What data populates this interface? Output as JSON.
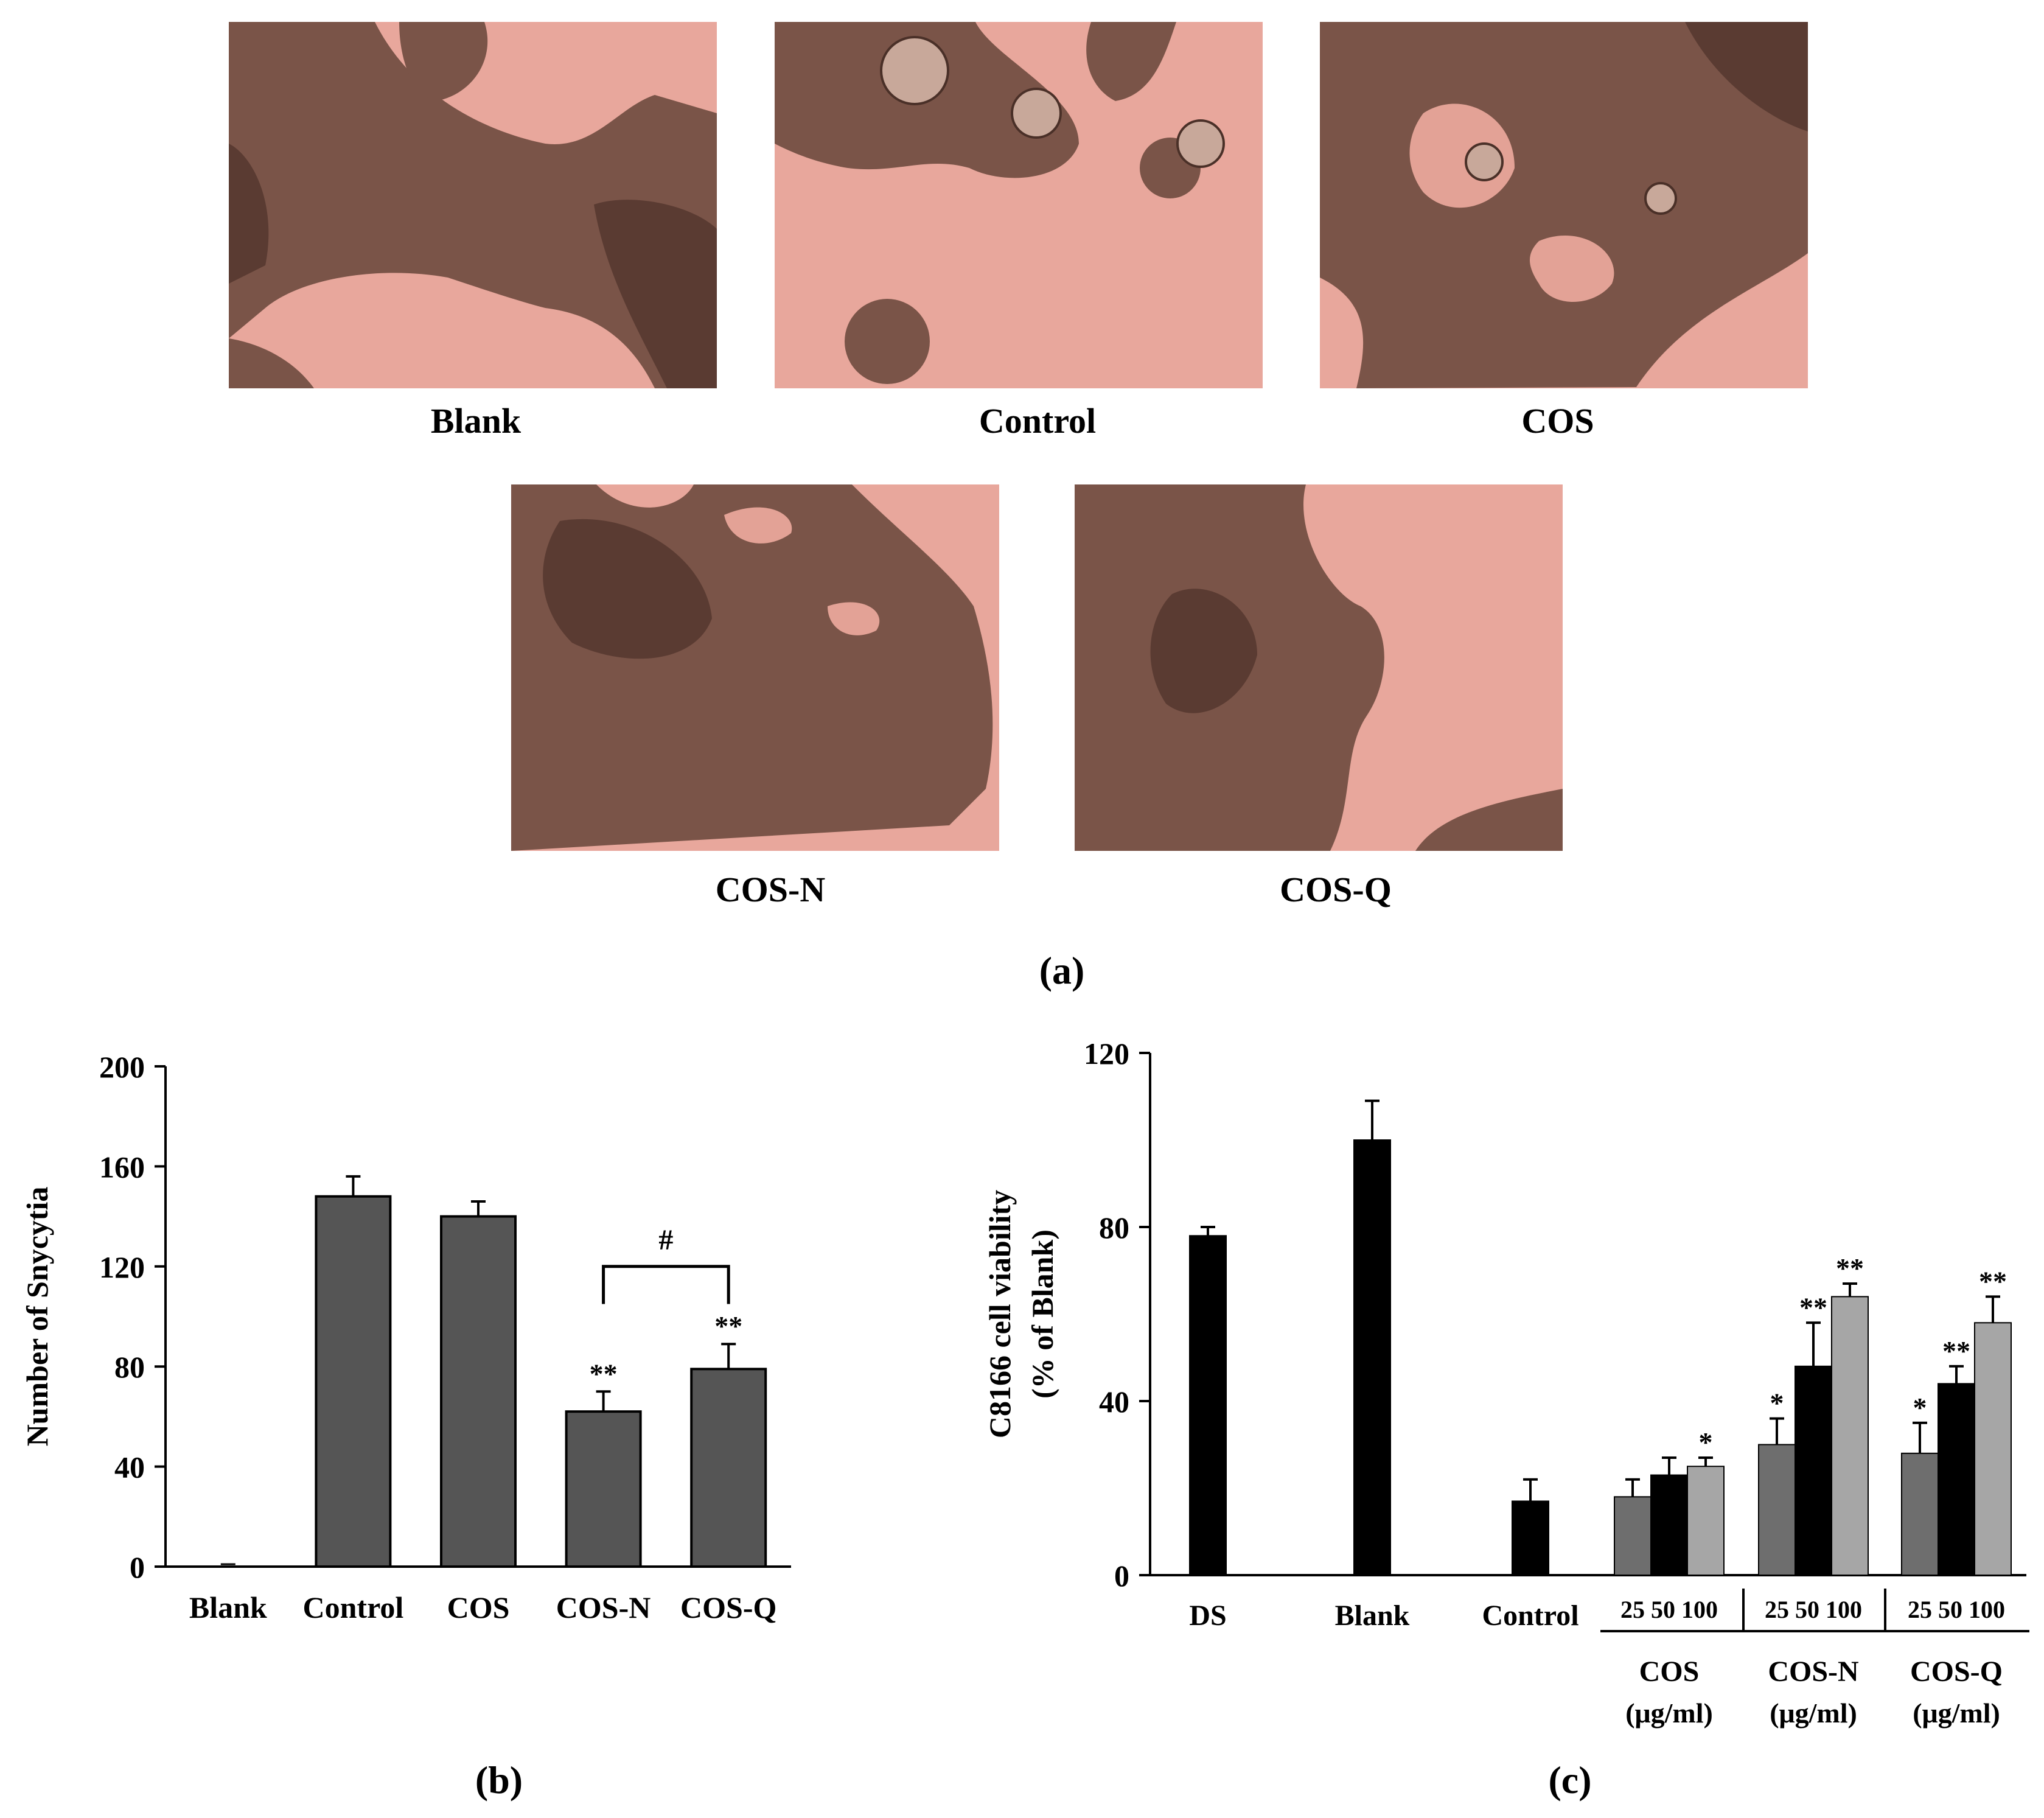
{
  "figure": {
    "panel_a_label": "(a)",
    "panel_b_label": "(b)",
    "panel_c_label": "(c)"
  },
  "micrographs": [
    {
      "caption": "Blank"
    },
    {
      "caption": "Control"
    },
    {
      "caption": "COS"
    },
    {
      "caption": "COS-N"
    },
    {
      "caption": "COS-Q"
    }
  ],
  "colors": {
    "medium_background": "#e8a79c",
    "cell_mass": "#6e4a40",
    "bar_dark_gray": "#555555",
    "bar_mid_gray": "#6e6e6e",
    "bar_black": "#000000",
    "bar_light_gray": "#a6a6a6"
  },
  "chart_data": [
    {
      "id": "b",
      "type": "bar",
      "ylabel": "Number of Snycytia",
      "ylim": [
        0,
        200
      ],
      "yticks": [
        0,
        40,
        80,
        120,
        160,
        200
      ],
      "categories": [
        "Blank",
        "Control",
        "COS",
        "COS-N",
        "COS-Q"
      ],
      "values": [
        0,
        148,
        140,
        62,
        79
      ],
      "errors": [
        0,
        8,
        6,
        8,
        10
      ],
      "significance": [
        "",
        "",
        "",
        "**",
        "**"
      ],
      "bracket": {
        "from": "COS-N",
        "to": "COS-Q",
        "label": "#"
      }
    },
    {
      "id": "c",
      "type": "bar",
      "ylabel_line1": "C8166 cell viability",
      "ylabel_line2": "(% of Blank)",
      "ylim": [
        0,
        120
      ],
      "yticks": [
        0,
        40,
        80,
        120
      ],
      "single_bars": [
        {
          "label": "DS",
          "value": 78,
          "error": 2
        },
        {
          "label": "Blank",
          "value": 100,
          "error": 9
        },
        {
          "label": "Control",
          "value": 17,
          "error": 5
        }
      ],
      "dose_label": "25 50 100",
      "doses": [
        "25",
        "50",
        "100"
      ],
      "groups": [
        {
          "name": "COS",
          "unit": "(μg/ml)",
          "values": [
            18,
            23,
            25
          ],
          "errors": [
            4,
            4,
            2
          ],
          "significance": [
            "",
            "",
            "*"
          ]
        },
        {
          "name": "COS-N",
          "unit": "(μg/ml)",
          "values": [
            30,
            48,
            64
          ],
          "errors": [
            6,
            10,
            3
          ],
          "significance": [
            "*",
            "**",
            "**"
          ]
        },
        {
          "name": "COS-Q",
          "unit": "(μg/ml)",
          "values": [
            28,
            44,
            58
          ],
          "errors": [
            7,
            4,
            6
          ],
          "significance": [
            "*",
            "**",
            "**"
          ]
        }
      ]
    }
  ]
}
